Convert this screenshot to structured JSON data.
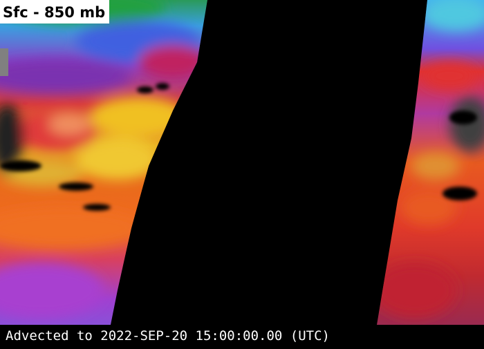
{
  "header": {
    "title": "Sfc - 850 mb"
  },
  "footer": {
    "timestamp": "Advected to 2022-SEP-20 15:00:00.00 (UTC)"
  }
}
